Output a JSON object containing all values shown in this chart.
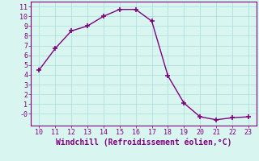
{
  "x": [
    10,
    11,
    12,
    13,
    14,
    15,
    16,
    17,
    18,
    19,
    20,
    21,
    22,
    23
  ],
  "y": [
    4.5,
    6.7,
    8.5,
    9.0,
    10.0,
    10.7,
    10.7,
    9.5,
    3.9,
    1.1,
    -0.3,
    -0.6,
    -0.4,
    -0.3
  ],
  "line_color": "#800080",
  "marker": "+",
  "marker_color": "#800080",
  "bg_color": "#d8f5f0",
  "grid_color": "#aaddda",
  "xlabel": "Windchill (Refroidissement éolien,°C)",
  "xlabel_color": "#800080",
  "tick_color": "#800080",
  "spine_color": "#800080",
  "xlim": [
    9.5,
    23.5
  ],
  "ylim": [
    -1.2,
    11.5
  ],
  "xticks": [
    10,
    11,
    12,
    13,
    14,
    15,
    16,
    17,
    18,
    19,
    20,
    21,
    22,
    23
  ],
  "yticks": [
    0,
    1,
    2,
    3,
    4,
    5,
    6,
    7,
    8,
    9,
    10,
    11
  ],
  "ytick_labels": [
    "-0",
    "1",
    "2",
    "3",
    "4",
    "5",
    "6",
    "7",
    "8",
    "9",
    "10",
    "11"
  ],
  "line_width": 1.0,
  "marker_size": 4,
  "tick_fontsize": 6,
  "xlabel_fontsize": 7,
  "font_family": "monospace"
}
